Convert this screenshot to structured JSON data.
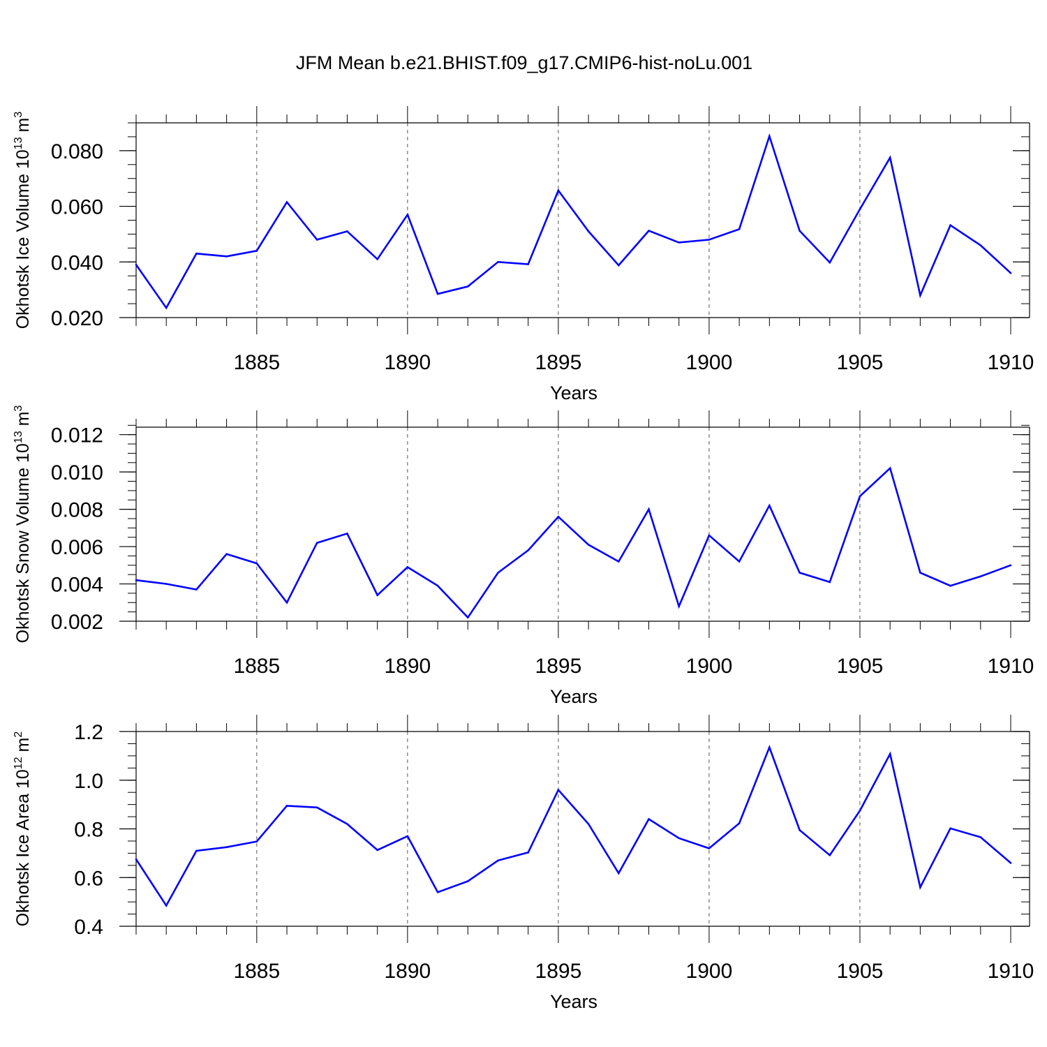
{
  "title": "JFM Mean b.e21.BHIST.f09_g17.CMIP6-hist-noLu.001",
  "colors": {
    "line": "#0000ff",
    "axis": "#000000",
    "grid": "#555555"
  },
  "chart_data": [
    {
      "type": "line",
      "ylabel": "Okhotsk Ice Volume 10",
      "ylabel_exponent": "13",
      "ylabel_unit": "m",
      "ylabel_unit_exponent": "3",
      "xlabel": "Years",
      "xlim": [
        1881,
        1910
      ],
      "ylim": [
        0.02,
        0.09
      ],
      "xticks": [
        1885,
        1890,
        1895,
        1900,
        1905,
        1910
      ],
      "xtick_labels": [
        "1885",
        "1890",
        "1895",
        "1900",
        "1905",
        "1910"
      ],
      "yticks": [
        0.02,
        0.04,
        0.06,
        0.08
      ],
      "ytick_labels": [
        "0.020",
        "0.040",
        "0.060",
        "0.080"
      ],
      "yminor_step": 0.005,
      "x": [
        1881,
        1882,
        1883,
        1884,
        1885,
        1886,
        1887,
        1888,
        1889,
        1890,
        1891,
        1892,
        1893,
        1894,
        1895,
        1896,
        1897,
        1898,
        1899,
        1900,
        1901,
        1902,
        1903,
        1904,
        1905,
        1906,
        1907,
        1908,
        1909,
        1910
      ],
      "y": [
        0.039,
        0.0235,
        0.043,
        0.042,
        0.044,
        0.0615,
        0.048,
        0.051,
        0.041,
        0.057,
        0.0285,
        0.0312,
        0.04,
        0.0392,
        0.0657,
        0.051,
        0.0388,
        0.0512,
        0.047,
        0.048,
        0.0518,
        0.0852,
        0.0512,
        0.0398,
        0.059,
        0.0775,
        0.028,
        0.0532,
        0.046,
        0.036
      ]
    },
    {
      "type": "line",
      "ylabel": "Okhotsk Snow Volume 10",
      "ylabel_exponent": "13",
      "ylabel_unit": "m",
      "ylabel_unit_exponent": "3",
      "xlabel": "Years",
      "xlim": [
        1881,
        1910
      ],
      "ylim": [
        0.002,
        0.0124
      ],
      "xticks": [
        1885,
        1890,
        1895,
        1900,
        1905,
        1910
      ],
      "xtick_labels": [
        "1885",
        "1890",
        "1895",
        "1900",
        "1905",
        "1910"
      ],
      "yticks": [
        0.002,
        0.004,
        0.006,
        0.008,
        0.01,
        0.012
      ],
      "ytick_labels": [
        "0.002",
        "0.004",
        "0.006",
        "0.008",
        "0.010",
        "0.012"
      ],
      "yminor_step": 0.0005,
      "x": [
        1881,
        1882,
        1883,
        1884,
        1885,
        1886,
        1887,
        1888,
        1889,
        1890,
        1891,
        1892,
        1893,
        1894,
        1895,
        1896,
        1897,
        1898,
        1899,
        1900,
        1901,
        1902,
        1903,
        1904,
        1905,
        1906,
        1907,
        1908,
        1909,
        1910
      ],
      "y": [
        0.0042,
        0.004,
        0.0037,
        0.0056,
        0.0051,
        0.003,
        0.0062,
        0.0067,
        0.0034,
        0.0049,
        0.0039,
        0.0022,
        0.0046,
        0.0058,
        0.0076,
        0.0061,
        0.0052,
        0.008,
        0.0028,
        0.0066,
        0.0052,
        0.0082,
        0.0046,
        0.0041,
        0.0087,
        0.0102,
        0.0046,
        0.0039,
        0.0044,
        0.005
      ]
    },
    {
      "type": "line",
      "ylabel": "Okhotsk Ice Area 10",
      "ylabel_exponent": "12",
      "ylabel_unit": "m",
      "ylabel_unit_exponent": "2",
      "xlabel": "Years",
      "xlim": [
        1881,
        1910
      ],
      "ylim": [
        0.4,
        1.2
      ],
      "xticks": [
        1885,
        1890,
        1895,
        1900,
        1905,
        1910
      ],
      "xtick_labels": [
        "1885",
        "1890",
        "1895",
        "1900",
        "1905",
        "1910"
      ],
      "yticks": [
        0.4,
        0.6,
        0.8,
        1.0,
        1.2
      ],
      "ytick_labels": [
        "0.4",
        "0.6",
        "0.8",
        "1.0",
        "1.2"
      ],
      "yminor_step": 0.05,
      "x": [
        1881,
        1882,
        1883,
        1884,
        1885,
        1886,
        1887,
        1888,
        1889,
        1890,
        1891,
        1892,
        1893,
        1894,
        1895,
        1896,
        1897,
        1898,
        1899,
        1900,
        1901,
        1902,
        1903,
        1904,
        1905,
        1906,
        1907,
        1908,
        1909,
        1910
      ],
      "y": [
        0.675,
        0.485,
        0.71,
        0.725,
        0.748,
        0.895,
        0.888,
        0.82,
        0.713,
        0.77,
        0.54,
        0.585,
        0.67,
        0.703,
        0.96,
        0.82,
        0.618,
        0.84,
        0.762,
        0.72,
        0.823,
        1.135,
        0.795,
        0.692,
        0.875,
        1.108,
        0.56,
        0.802,
        0.766,
        0.66
      ]
    }
  ]
}
